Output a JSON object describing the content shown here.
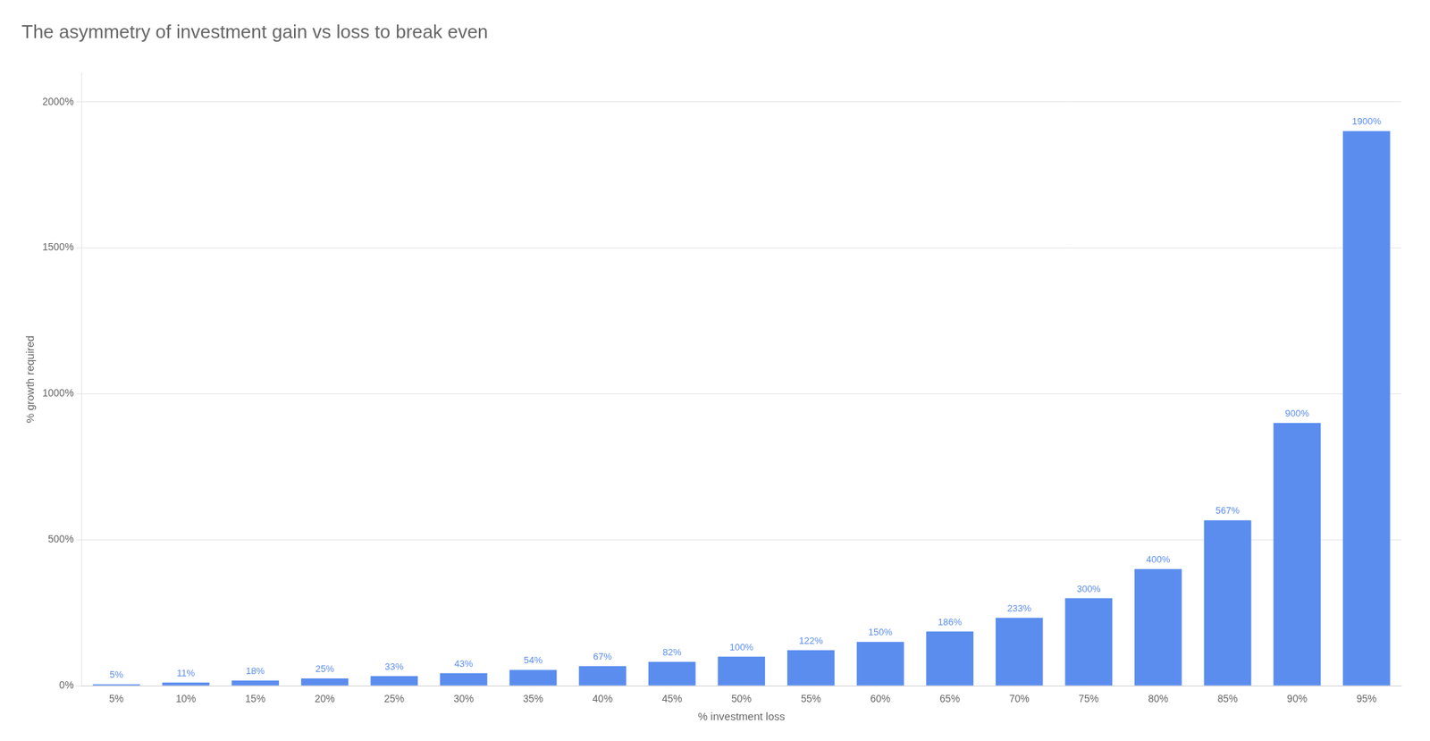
{
  "chart_data": {
    "type": "bar",
    "title": "The asymmetry of investment gain vs loss to break even",
    "xlabel": "% investment loss",
    "ylabel": "% growth required",
    "categories": [
      "5%",
      "10%",
      "15%",
      "20%",
      "25%",
      "30%",
      "35%",
      "40%",
      "45%",
      "50%",
      "55%",
      "60%",
      "65%",
      "70%",
      "75%",
      "80%",
      "85%",
      "90%",
      "95%"
    ],
    "values": [
      5,
      11,
      18,
      25,
      33,
      43,
      54,
      67,
      82,
      100,
      122,
      150,
      186,
      233,
      300,
      400,
      567,
      900,
      1900
    ],
    "value_labels": [
      "5%",
      "11%",
      "18%",
      "25%",
      "33%",
      "43%",
      "54%",
      "67%",
      "82%",
      "100%",
      "122%",
      "150%",
      "186%",
      "233%",
      "300%",
      "400%",
      "567%",
      "900%",
      "1900%"
    ],
    "data_labels": true,
    "color": "#5B8DEF",
    "ylim": [
      0,
      2100
    ],
    "yticks": [
      {
        "value": 0,
        "label": "0%"
      },
      {
        "value": 500,
        "label": "500%"
      },
      {
        "value": 1000,
        "label": "1000%"
      },
      {
        "value": 1500,
        "label": "1500%"
      },
      {
        "value": 2000,
        "label": "2000%"
      }
    ],
    "grid": true
  }
}
